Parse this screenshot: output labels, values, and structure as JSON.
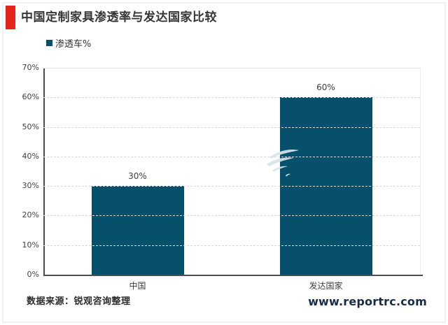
{
  "page": {
    "title": "中国定制家具渗透率与发达国家比较",
    "source_note": "数据来源：锐观咨询整理",
    "website": "www.reportrc.com"
  },
  "legend": {
    "label": "渗透车%"
  },
  "colors": {
    "accent_red": "#e3251e",
    "bar": "#07506b",
    "axis": "#4d4d4d",
    "grid": "#d9d9d9",
    "title_text": "#363636",
    "website_text": "#182c47",
    "watermark": "#d9e4e9"
  },
  "chart_data": {
    "type": "bar",
    "title": "中国定制家具渗透率与发达国家比较",
    "categories": [
      "中国",
      "发达国家"
    ],
    "values": [
      30,
      60
    ],
    "value_labels": [
      "30%",
      "60%"
    ],
    "series_name": "渗透车%",
    "xlabel": "",
    "ylabel": "",
    "ylim": [
      0,
      70
    ],
    "ytick_step": 10,
    "ytick_labels": [
      "0%",
      "10%",
      "20%",
      "30%",
      "40%",
      "50%",
      "60%",
      "70%"
    ],
    "grid": "horizontal-dashed",
    "legend_position": "top-left"
  }
}
